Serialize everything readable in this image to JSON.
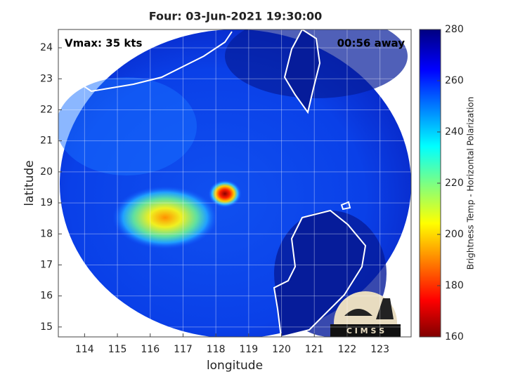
{
  "chart_data": {
    "type": "map",
    "title": "Four: 03-Jun-2021 19:30:00",
    "annotations": [
      "Vmax: 35 kts",
      "00:56 away"
    ],
    "xlabel": "longitude",
    "ylabel": "latitude",
    "xlim": [
      113.2,
      123.95
    ],
    "ylim": [
      14.68,
      24.59
    ],
    "xticks": [
      114,
      115,
      116,
      117,
      118,
      119,
      120,
      121,
      122,
      123
    ],
    "yticks": [
      15,
      16,
      17,
      18,
      19,
      20,
      21,
      22,
      23,
      24
    ],
    "grid": true,
    "colorbar": {
      "label": "Brightness Temp - Horizontal Polarization",
      "clim": [
        160,
        280
      ],
      "ticks": [
        160,
        180,
        200,
        220,
        240,
        260,
        280
      ]
    },
    "logo": "C I M S S"
  }
}
